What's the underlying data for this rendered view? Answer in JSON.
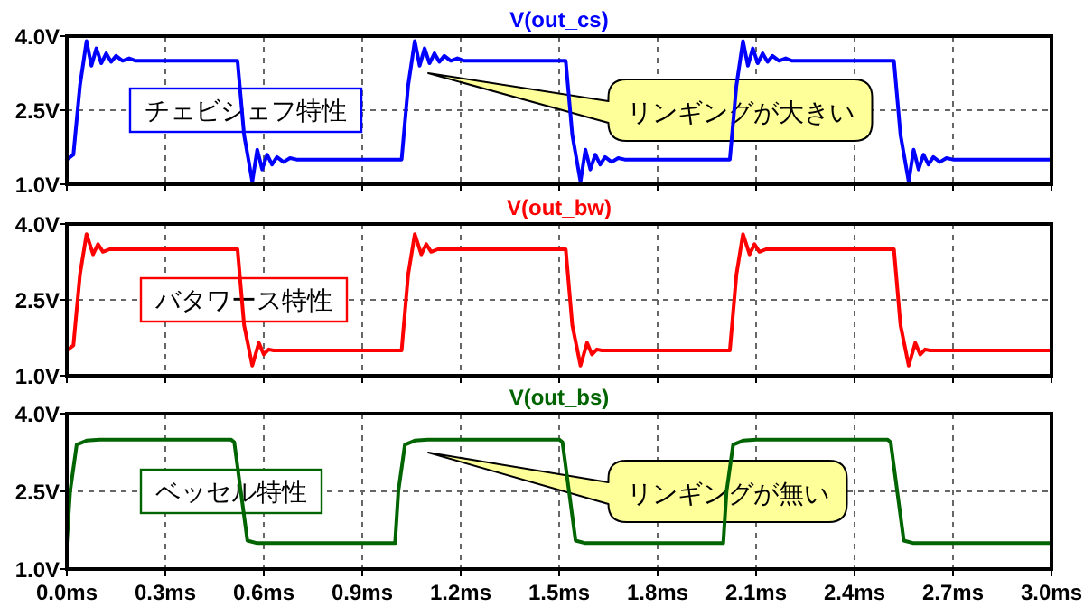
{
  "chart_data": [
    {
      "type": "line",
      "title": "V(out_cs)",
      "xlim": [
        0,
        3
      ],
      "ylim": [
        1,
        4
      ],
      "grid": true,
      "tick_labels": "y",
      "xticks": [
        0,
        0.3,
        0.6,
        0.9,
        1.2,
        1.5,
        1.8,
        2.1,
        2.4,
        2.7,
        3.0
      ],
      "yticks": [
        {
          "value": 1,
          "label": "1.0V"
        },
        {
          "value": 2.5,
          "label": "2.5V"
        },
        {
          "value": 4,
          "label": "4.0V"
        }
      ],
      "x": [
        0,
        0.02,
        0.04,
        0.06,
        0.075,
        0.09,
        0.105,
        0.12,
        0.135,
        0.15,
        0.17,
        0.19,
        0.21,
        0.52,
        0.54,
        0.565,
        0.58,
        0.595,
        0.61,
        0.625,
        0.64,
        0.66,
        0.68,
        0.7,
        1.02,
        1.04,
        1.06,
        1.075,
        1.09,
        1.105,
        1.12,
        1.135,
        1.15,
        1.17,
        1.19,
        1.21,
        1.52,
        1.54,
        1.565,
        1.58,
        1.595,
        1.61,
        1.625,
        1.64,
        1.66,
        1.68,
        1.7,
        2.02,
        2.04,
        2.06,
        2.075,
        2.09,
        2.105,
        2.12,
        2.135,
        2.15,
        2.17,
        2.19,
        2.21,
        2.52,
        2.54,
        2.565,
        2.58,
        2.595,
        2.61,
        2.625,
        2.64,
        2.66,
        2.68,
        2.7,
        3.0
      ],
      "series": [
        {
          "color": "#0000ff",
          "values": [
            1.5,
            1.6,
            3.0,
            3.9,
            3.4,
            3.75,
            3.45,
            3.65,
            3.48,
            3.6,
            3.5,
            3.55,
            3.5,
            3.5,
            2.0,
            1.05,
            1.7,
            1.3,
            1.6,
            1.4,
            1.55,
            1.45,
            1.53,
            1.5,
            1.5,
            3.0,
            3.9,
            3.4,
            3.75,
            3.45,
            3.65,
            3.48,
            3.6,
            3.5,
            3.55,
            3.5,
            3.5,
            2.0,
            1.05,
            1.7,
            1.3,
            1.6,
            1.4,
            1.55,
            1.45,
            1.53,
            1.5,
            1.5,
            3.0,
            3.9,
            3.4,
            3.75,
            3.45,
            3.65,
            3.48,
            3.6,
            3.5,
            3.55,
            3.5,
            3.5,
            2.0,
            1.05,
            1.7,
            1.3,
            1.6,
            1.4,
            1.55,
            1.45,
            1.53,
            1.5,
            1.5
          ]
        }
      ],
      "annotations": [
        "チェビシェフ特性",
        "リンギングが大きい"
      ]
    },
    {
      "type": "line",
      "title": "V(out_bw)",
      "xlim": [
        0,
        3
      ],
      "ylim": [
        1,
        4
      ],
      "grid": true,
      "tick_labels": "y",
      "xticks": [
        0,
        0.3,
        0.6,
        0.9,
        1.2,
        1.5,
        1.8,
        2.1,
        2.4,
        2.7,
        3.0
      ],
      "yticks": [
        {
          "value": 1,
          "label": "1.0V"
        },
        {
          "value": 2.5,
          "label": "2.5V"
        },
        {
          "value": 4,
          "label": "4.0V"
        }
      ],
      "x": [
        0,
        0.02,
        0.04,
        0.06,
        0.08,
        0.095,
        0.11,
        0.13,
        0.52,
        0.54,
        0.565,
        0.585,
        0.6,
        0.615,
        0.63,
        1.02,
        1.04,
        1.06,
        1.08,
        1.095,
        1.11,
        1.13,
        1.52,
        1.54,
        1.565,
        1.585,
        1.6,
        1.615,
        1.63,
        2.02,
        2.04,
        2.06,
        2.08,
        2.095,
        2.11,
        2.13,
        2.52,
        2.54,
        2.565,
        2.585,
        2.6,
        2.615,
        2.63,
        3.0
      ],
      "series": [
        {
          "color": "#ff0000",
          "values": [
            1.5,
            1.6,
            3.0,
            3.8,
            3.4,
            3.6,
            3.45,
            3.5,
            3.5,
            2.0,
            1.2,
            1.65,
            1.42,
            1.52,
            1.5,
            1.5,
            3.0,
            3.8,
            3.4,
            3.6,
            3.45,
            3.5,
            3.5,
            2.0,
            1.2,
            1.65,
            1.42,
            1.52,
            1.5,
            1.5,
            3.0,
            3.8,
            3.4,
            3.6,
            3.45,
            3.5,
            3.5,
            2.0,
            1.2,
            1.65,
            1.42,
            1.52,
            1.5,
            1.5
          ]
        }
      ],
      "annotations": [
        "バタワース特性"
      ]
    },
    {
      "type": "line",
      "title": "V(out_bs)",
      "xlim": [
        0,
        3
      ],
      "ylim": [
        1,
        4
      ],
      "grid": true,
      "xticks": [
        {
          "value": 0,
          "label": "0.0ms"
        },
        {
          "value": 0.3,
          "label": "0.3ms"
        },
        {
          "value": 0.6,
          "label": "0.6ms"
        },
        {
          "value": 0.9,
          "label": "0.9ms"
        },
        {
          "value": 1.2,
          "label": "1.2ms"
        },
        {
          "value": 1.5,
          "label": "1.5ms"
        },
        {
          "value": 1.8,
          "label": "1.8ms"
        },
        {
          "value": 2.1,
          "label": "2.1ms"
        },
        {
          "value": 2.4,
          "label": "2.4ms"
        },
        {
          "value": 2.7,
          "label": "2.7ms"
        },
        {
          "value": 3.0,
          "label": "3.0ms"
        }
      ],
      "yticks": [
        {
          "value": 1,
          "label": "1.0V"
        },
        {
          "value": 2.5,
          "label": "2.5V"
        },
        {
          "value": 4,
          "label": "4.0V"
        }
      ],
      "x": [
        0,
        0.01,
        0.03,
        0.06,
        0.1,
        0.5,
        0.51,
        0.53,
        0.55,
        0.58,
        1.0,
        1.01,
        1.03,
        1.06,
        1.1,
        1.5,
        1.51,
        1.53,
        1.55,
        1.58,
        2.0,
        2.01,
        2.03,
        2.06,
        2.1,
        2.5,
        2.51,
        2.53,
        2.55,
        2.58,
        3.0
      ],
      "series": [
        {
          "color": "#006400",
          "values": [
            1.5,
            2.5,
            3.4,
            3.48,
            3.5,
            3.5,
            3.45,
            2.5,
            1.55,
            1.5,
            1.5,
            2.5,
            3.4,
            3.48,
            3.5,
            3.5,
            3.45,
            2.5,
            1.55,
            1.5,
            1.5,
            2.5,
            3.4,
            3.48,
            3.5,
            3.5,
            3.45,
            2.5,
            1.55,
            1.5,
            1.5
          ]
        }
      ],
      "annotations": [
        "ベッセル特性",
        "リンギングが無い"
      ]
    }
  ]
}
